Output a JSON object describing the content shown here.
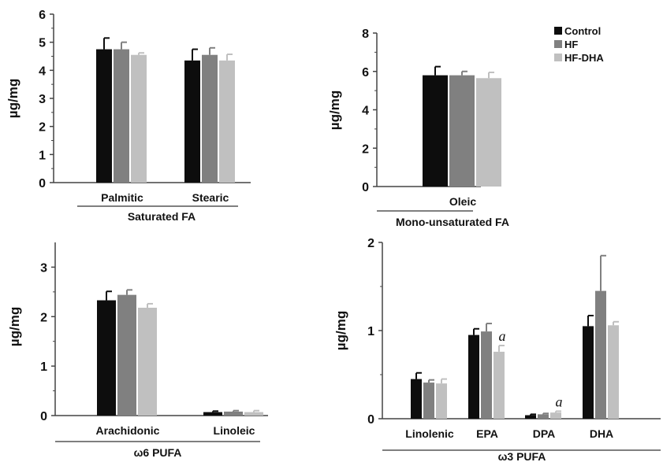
{
  "legend": [
    {
      "name": "Control",
      "color": "#0d0d0d"
    },
    {
      "name": "HF",
      "color": "#808080"
    },
    {
      "name": "HF-DHA",
      "color": "#c0c0c0"
    }
  ],
  "chart_data": [
    {
      "type": "bar",
      "ylabel": "µg/mg",
      "group_label": "Saturated   FA",
      "ylim": [
        0,
        6
      ],
      "yticks": [
        0,
        1,
        2,
        3,
        4,
        5,
        6
      ],
      "categories": [
        "Palmitic",
        "Stearic"
      ],
      "series": [
        {
          "name": "Control",
          "values": [
            4.75,
            4.35
          ],
          "errors": [
            0.4,
            0.4
          ],
          "annotations": [
            "",
            ""
          ]
        },
        {
          "name": "HF",
          "values": [
            4.75,
            4.55
          ],
          "errors": [
            0.25,
            0.25
          ],
          "annotations": [
            "",
            ""
          ]
        },
        {
          "name": "HF-DHA",
          "values": [
            4.55,
            4.35
          ],
          "errors": [
            0.07,
            0.22
          ],
          "annotations": [
            "",
            ""
          ]
        }
      ]
    },
    {
      "type": "bar",
      "ylabel": "µg/mg",
      "group_label": "Mono-unsaturated   FA",
      "ylim": [
        0,
        8
      ],
      "yticks": [
        0,
        2,
        4,
        6,
        8
      ],
      "categories": [
        "Oleic"
      ],
      "series": [
        {
          "name": "Control",
          "values": [
            5.8
          ],
          "errors": [
            0.45
          ],
          "annotations": [
            ""
          ]
        },
        {
          "name": "HF",
          "values": [
            5.8
          ],
          "errors": [
            0.2
          ],
          "annotations": [
            ""
          ]
        },
        {
          "name": "HF-DHA",
          "values": [
            5.65
          ],
          "errors": [
            0.3
          ],
          "annotations": [
            ""
          ]
        }
      ]
    },
    {
      "type": "bar",
      "ylabel": "µg/mg",
      "group_label": "ω6  PUFA",
      "ylim": [
        0,
        3.5
      ],
      "yticks": [
        0,
        1,
        2,
        3
      ],
      "categories": [
        "Arachidonic",
        "Linoleic"
      ],
      "series": [
        {
          "name": "Control",
          "values": [
            2.33,
            0.07
          ],
          "errors": [
            0.18,
            0.02
          ],
          "annotations": [
            "",
            ""
          ]
        },
        {
          "name": "HF",
          "values": [
            2.44,
            0.08
          ],
          "errors": [
            0.1,
            0.02
          ],
          "annotations": [
            "",
            ""
          ]
        },
        {
          "name": "HF-DHA",
          "values": [
            2.18,
            0.07
          ],
          "errors": [
            0.08,
            0.03
          ],
          "annotations": [
            "",
            ""
          ]
        }
      ]
    },
    {
      "type": "bar",
      "ylabel": "µg/mg",
      "group_label": "ω3  PUFA",
      "ylim": [
        0,
        2
      ],
      "yticks": [
        0,
        1,
        2
      ],
      "categories": [
        "Linolenic",
        "EPA",
        "DPA",
        "DHA"
      ],
      "series": [
        {
          "name": "Control",
          "values": [
            0.45,
            0.95,
            0.04,
            1.05
          ],
          "errors": [
            0.07,
            0.07,
            0.01,
            0.12
          ],
          "annotations": [
            "",
            "",
            "",
            ""
          ]
        },
        {
          "name": "HF",
          "values": [
            0.41,
            0.99,
            0.05,
            1.45
          ],
          "errors": [
            0.03,
            0.09,
            0.01,
            0.4
          ],
          "annotations": [
            "",
            "",
            "",
            ""
          ]
        },
        {
          "name": "HF-DHA",
          "values": [
            0.4,
            0.76,
            0.07,
            1.06
          ],
          "errors": [
            0.05,
            0.07,
            0.015,
            0.04
          ],
          "annotations": [
            "",
            "a",
            "a",
            ""
          ]
        }
      ]
    }
  ]
}
